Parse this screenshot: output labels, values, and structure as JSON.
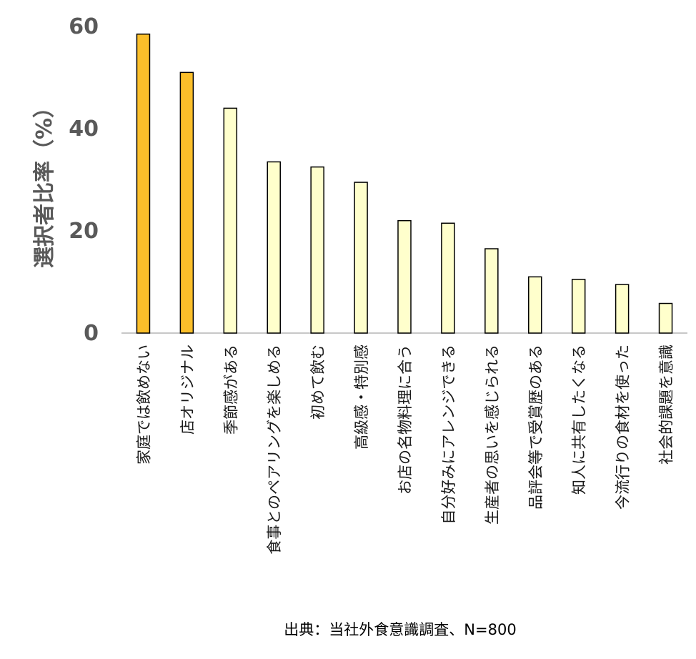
{
  "chart_data": {
    "type": "bar",
    "ylabel": "選択者比率（%）",
    "xlabel": "",
    "ylim": [
      0,
      60
    ],
    "yticks": [
      0,
      20,
      40,
      60
    ],
    "categories": [
      "家庭では飲めない",
      "店オリジナル",
      "季節感がある",
      "食事とのペアリングを楽しめる",
      "初めて飲む",
      "高級感・特別感",
      "お店の名物料理に合う",
      "自分好みにアレンジできる",
      "生産者の思いを感じられる",
      "品評会等で受賞歴のある",
      "知人に共有したくなる",
      "今流行りの食材を使った",
      "社会的課題を意識"
    ],
    "values": [
      58.5,
      51,
      44,
      33.5,
      32.5,
      29.5,
      22,
      21.5,
      16.5,
      11,
      10.5,
      9.5,
      5.8
    ],
    "highlight": [
      true,
      true,
      false,
      false,
      false,
      false,
      false,
      false,
      false,
      false,
      false,
      false,
      false
    ],
    "colors": {
      "highlight": "#fbbf2a",
      "normal": "#ffffcc",
      "border": "#000000",
      "axis": "#c8c8c8"
    },
    "grid": false,
    "legend": "none"
  },
  "source_note": "出典：当社外食意識調査、N=800"
}
